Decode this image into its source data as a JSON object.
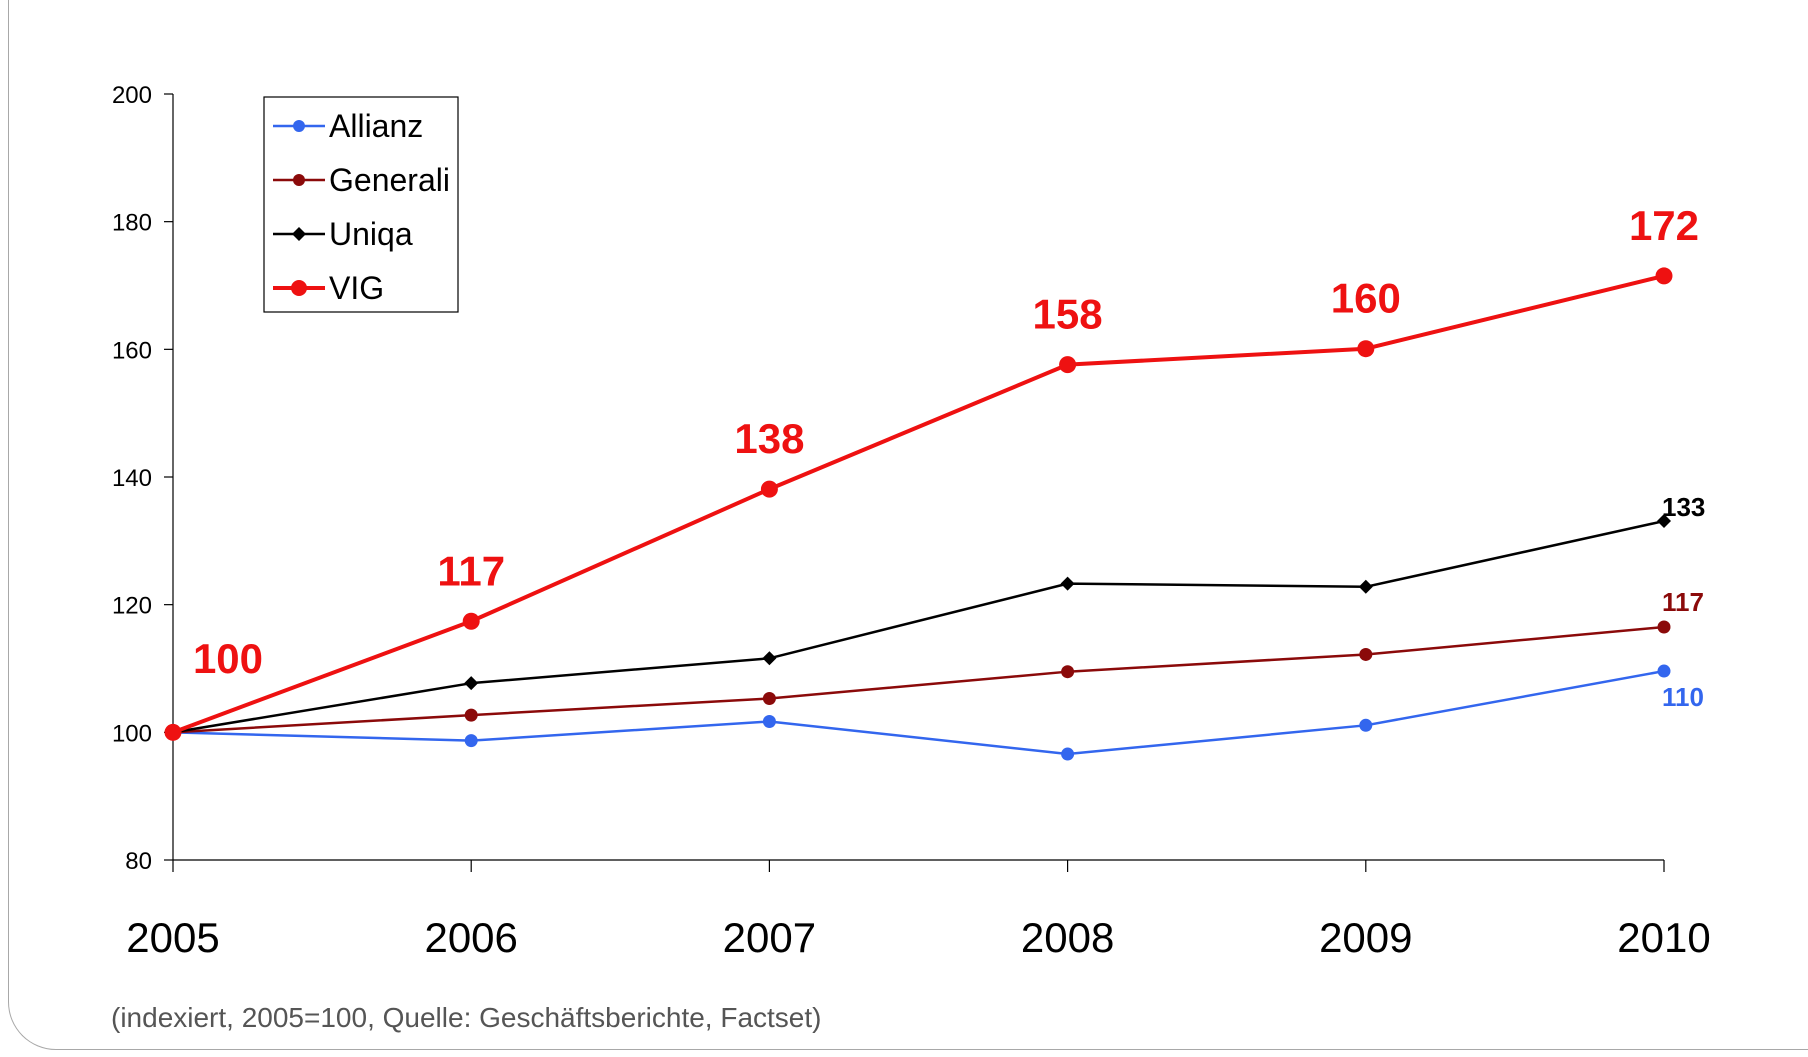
{
  "chart_data": {
    "type": "line",
    "x": [
      "2005",
      "2006",
      "2007",
      "2008",
      "2009",
      "2010"
    ],
    "ylim": [
      80,
      200
    ],
    "yticks": [
      80,
      100,
      120,
      140,
      160,
      180,
      200
    ],
    "grid": false,
    "legend_position": "top-left",
    "series": [
      {
        "name": "Allianz",
        "color": "#3366ee",
        "marker": "circle",
        "values": [
          100,
          98.7,
          101.7,
          96.6,
          101.1,
          109.6
        ]
      },
      {
        "name": "Generali",
        "color": "#8b0a0a",
        "marker": "circle",
        "values": [
          100,
          102.7,
          105.3,
          109.5,
          112.2,
          116.5
        ]
      },
      {
        "name": "Uniqa",
        "color": "#000000",
        "marker": "diamond",
        "values": [
          100,
          107.7,
          111.6,
          123.3,
          122.8,
          133.1
        ]
      },
      {
        "name": "VIG",
        "color": "#ee1111",
        "marker": "circle",
        "values": [
          100,
          117.4,
          138.1,
          157.6,
          160.1,
          171.5
        ]
      }
    ],
    "data_labels": [
      {
        "series": "VIG",
        "x": "2005",
        "text": "100"
      },
      {
        "series": "VIG",
        "x": "2006",
        "text": "117"
      },
      {
        "series": "VIG",
        "x": "2007",
        "text": "138"
      },
      {
        "series": "VIG",
        "x": "2008",
        "text": "158"
      },
      {
        "series": "VIG",
        "x": "2009",
        "text": "160"
      },
      {
        "series": "VIG",
        "x": "2010",
        "text": "172"
      },
      {
        "series": "Uniqa",
        "x": "2010",
        "text": "133"
      },
      {
        "series": "Generali",
        "x": "2010",
        "text": "117"
      },
      {
        "series": "Allianz",
        "x": "2010",
        "text": "110"
      }
    ]
  },
  "footnote": "(indexiert, 2005=100, Quelle: Geschäftsberichte, Factset)"
}
